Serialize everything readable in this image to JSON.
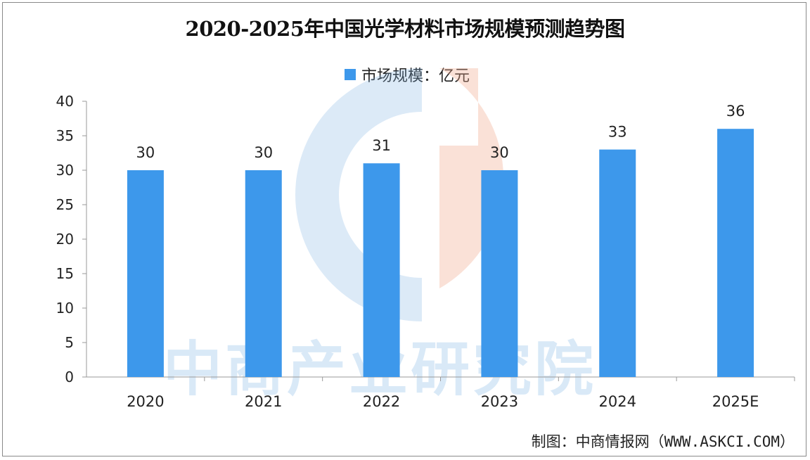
{
  "chart_data": {
    "type": "bar",
    "title": "2020-2025年中国光学材料市场规模预测趋势图",
    "categories": [
      "2020",
      "2021",
      "2022",
      "2023",
      "2024",
      "2025E"
    ],
    "series": [
      {
        "name": "市场规模：亿元",
        "values": [
          30,
          30,
          31,
          30,
          33,
          36
        ],
        "color": "#3d98eb"
      }
    ],
    "data_labels": [
      "30",
      "30",
      "31",
      "30",
      "33",
      "36"
    ],
    "ylim": [
      0,
      40
    ],
    "yticks": [
      0,
      5,
      10,
      15,
      20,
      25,
      30,
      35,
      40
    ],
    "legend_position": "top-center",
    "grid": false
  },
  "source": "制图：中商情报网（WWW.ASKCI.COM）",
  "watermark": "中商产业研究院"
}
